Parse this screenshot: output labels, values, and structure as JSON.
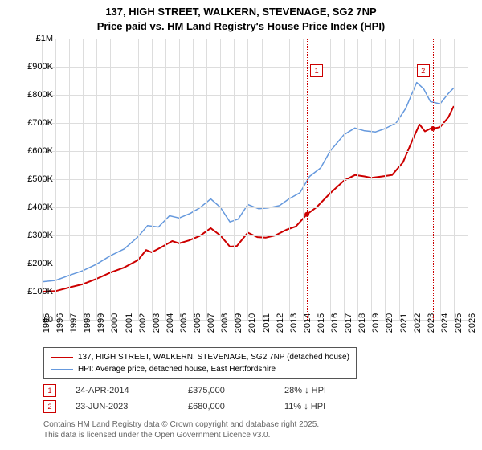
{
  "title_line1": "137, HIGH STREET, WALKERN, STEVENAGE, SG2 7NP",
  "title_line2": "Price paid vs. HM Land Registry's House Price Index (HPI)",
  "chart": {
    "type": "line",
    "background_color": "#ffffff",
    "grid_color": "#dddddd",
    "axis_color": "#555555",
    "label_fontsize": 11,
    "title_fontsize": 13,
    "x_min": 1995,
    "x_max": 2026,
    "x_ticks": [
      1995,
      1996,
      1997,
      1998,
      1999,
      2000,
      2001,
      2002,
      2003,
      2004,
      2005,
      2006,
      2007,
      2008,
      2009,
      2010,
      2011,
      2012,
      2013,
      2014,
      2015,
      2016,
      2017,
      2018,
      2019,
      2020,
      2021,
      2022,
      2023,
      2024,
      2025,
      2026
    ],
    "y_min": 0,
    "y_max": 1000000,
    "y_ticks": [
      {
        "v": 0,
        "label": "£0"
      },
      {
        "v": 100000,
        "label": "£100K"
      },
      {
        "v": 200000,
        "label": "£200K"
      },
      {
        "v": 300000,
        "label": "£300K"
      },
      {
        "v": 400000,
        "label": "£400K"
      },
      {
        "v": 500000,
        "label": "£500K"
      },
      {
        "v": 600000,
        "label": "£600K"
      },
      {
        "v": 700000,
        "label": "£700K"
      },
      {
        "v": 800000,
        "label": "£800K"
      },
      {
        "v": 900000,
        "label": "£900K"
      },
      {
        "v": 1000000,
        "label": "£1M"
      }
    ],
    "series": [
      {
        "name": "price_paid",
        "label": "137, HIGH STREET, WALKERN, STEVENAGE, SG2 7NP (detached house)",
        "color": "#cc0000",
        "line_width": 2.0,
        "data": [
          [
            1995.0,
            100000
          ],
          [
            1996.0,
            102000
          ],
          [
            1997.0,
            115000
          ],
          [
            1998.0,
            127000
          ],
          [
            1999.0,
            146000
          ],
          [
            2000.0,
            168000
          ],
          [
            2001.0,
            186000
          ],
          [
            2002.0,
            212000
          ],
          [
            2002.6,
            248000
          ],
          [
            2003.0,
            240000
          ],
          [
            2003.7,
            258000
          ],
          [
            2004.5,
            280000
          ],
          [
            2005.0,
            272000
          ],
          [
            2005.7,
            282000
          ],
          [
            2006.5,
            298000
          ],
          [
            2007.3,
            326000
          ],
          [
            2008.0,
            300000
          ],
          [
            2008.7,
            260000
          ],
          [
            2009.2,
            262000
          ],
          [
            2010.0,
            310000
          ],
          [
            2010.7,
            294000
          ],
          [
            2011.3,
            292000
          ],
          [
            2012.0,
            300000
          ],
          [
            2012.8,
            320000
          ],
          [
            2013.5,
            332000
          ],
          [
            2014.3,
            375000
          ],
          [
            2015.0,
            400000
          ],
          [
            2016.0,
            450000
          ],
          [
            2017.0,
            495000
          ],
          [
            2017.8,
            515000
          ],
          [
            2018.5,
            510000
          ],
          [
            2019.0,
            505000
          ],
          [
            2019.8,
            510000
          ],
          [
            2020.5,
            515000
          ],
          [
            2021.3,
            560000
          ],
          [
            2022.0,
            640000
          ],
          [
            2022.5,
            695000
          ],
          [
            2022.9,
            670000
          ],
          [
            2023.3,
            680000
          ],
          [
            2023.5,
            680000
          ],
          [
            2024.0,
            685000
          ],
          [
            2024.6,
            720000
          ],
          [
            2025.0,
            760000
          ]
        ]
      },
      {
        "name": "hpi",
        "label": "HPI: Average price, detached house, East Hertfordshire",
        "color": "#6699dd",
        "line_width": 1.5,
        "data": [
          [
            1995.0,
            135000
          ],
          [
            1996.0,
            140000
          ],
          [
            1997.0,
            158000
          ],
          [
            1998.0,
            175000
          ],
          [
            1999.0,
            198000
          ],
          [
            2000.0,
            228000
          ],
          [
            2001.0,
            252000
          ],
          [
            2002.0,
            295000
          ],
          [
            2002.7,
            335000
          ],
          [
            2003.5,
            330000
          ],
          [
            2004.3,
            370000
          ],
          [
            2005.0,
            362000
          ],
          [
            2005.8,
            378000
          ],
          [
            2006.5,
            398000
          ],
          [
            2007.3,
            430000
          ],
          [
            2008.0,
            400000
          ],
          [
            2008.7,
            348000
          ],
          [
            2009.3,
            358000
          ],
          [
            2010.0,
            410000
          ],
          [
            2010.8,
            395000
          ],
          [
            2011.5,
            398000
          ],
          [
            2012.3,
            406000
          ],
          [
            2013.0,
            430000
          ],
          [
            2013.8,
            452000
          ],
          [
            2014.5,
            510000
          ],
          [
            2015.3,
            540000
          ],
          [
            2016.0,
            600000
          ],
          [
            2017.0,
            658000
          ],
          [
            2017.8,
            682000
          ],
          [
            2018.5,
            672000
          ],
          [
            2019.3,
            668000
          ],
          [
            2020.0,
            680000
          ],
          [
            2020.8,
            700000
          ],
          [
            2021.5,
            752000
          ],
          [
            2022.3,
            844000
          ],
          [
            2022.8,
            822000
          ],
          [
            2023.3,
            776000
          ],
          [
            2024.0,
            768000
          ],
          [
            2024.6,
            805000
          ],
          [
            2025.0,
            825000
          ]
        ]
      }
    ],
    "markers": [
      {
        "id": "1",
        "x": 2014.31,
        "y": 375000
      },
      {
        "id": "2",
        "x": 2023.47,
        "y": 680000
      }
    ]
  },
  "legend": {
    "border_color": "#555555",
    "fontsize": 10
  },
  "table": {
    "rows": [
      {
        "marker": "1",
        "date": "24-APR-2014",
        "price": "£375,000",
        "pct": "28% ↓ HPI"
      },
      {
        "marker": "2",
        "date": "23-JUN-2023",
        "price": "£680,000",
        "pct": "11% ↓ HPI"
      }
    ],
    "fontsize": 11,
    "text_color": "#333333"
  },
  "attribution": {
    "line1": "Contains HM Land Registry data © Crown copyright and database right 2025.",
    "line2": "This data is licensed under the Open Government Licence v3.0.",
    "fontsize": 10,
    "color": "#666666"
  }
}
